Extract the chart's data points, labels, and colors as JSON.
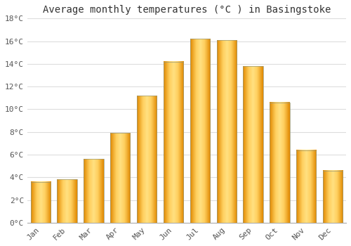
{
  "months": [
    "Jan",
    "Feb",
    "Mar",
    "Apr",
    "May",
    "Jun",
    "Jul",
    "Aug",
    "Sep",
    "Oct",
    "Nov",
    "Dec"
  ],
  "temperatures": [
    3.6,
    3.8,
    5.6,
    7.9,
    11.2,
    14.2,
    16.2,
    16.1,
    13.8,
    10.6,
    6.4,
    4.6
  ],
  "bar_color": "#FFA500",
  "bar_edge_color": "#888800",
  "title": "Average monthly temperatures (°C ) in Basingstoke",
  "ylim": [
    0,
    18
  ],
  "yticks": [
    0,
    2,
    4,
    6,
    8,
    10,
    12,
    14,
    16,
    18
  ],
  "ytick_labels": [
    "0°C",
    "2°C",
    "4°C",
    "6°C",
    "8°C",
    "10°C",
    "12°C",
    "14°C",
    "16°C",
    "18°C"
  ],
  "background_color": "#FFFFFF",
  "grid_color": "#DDDDDD",
  "title_fontsize": 10,
  "tick_fontsize": 8
}
